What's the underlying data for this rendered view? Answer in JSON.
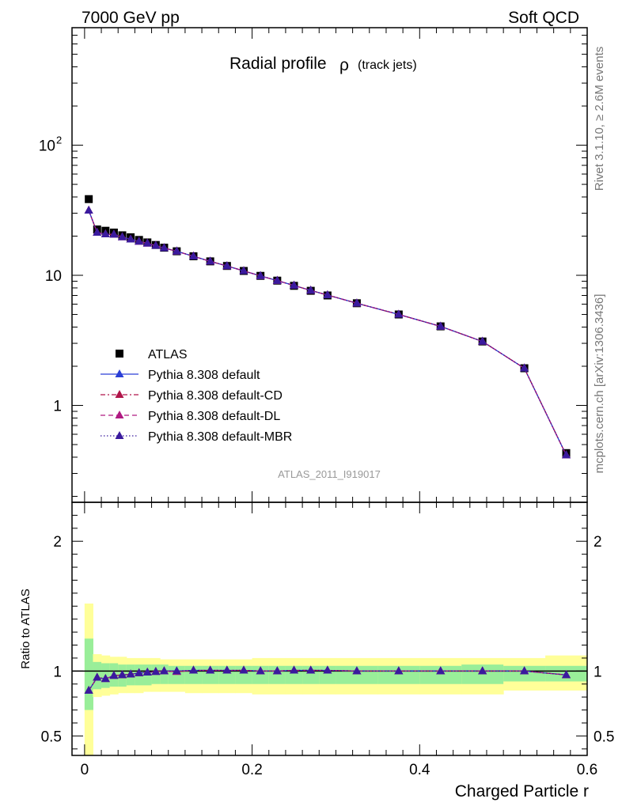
{
  "header": {
    "left": "7000 GeV pp",
    "right": "Soft QCD"
  },
  "side_labels": {
    "top": "Rivet 3.1.10, ≥ 2.6M events",
    "bottom": "mcplots.cern.ch [arXiv:1306.3436]"
  },
  "chart_data": [
    {
      "type": "scatter",
      "title": "Radial profile",
      "title_symbol": "ρ",
      "title_suffix": "(track jets)",
      "analysis_label": "ATLAS_2011_I919017",
      "xlabel": "",
      "ylabel": "",
      "xlim": [
        -0.015,
        0.6
      ],
      "ylog": true,
      "ylim": [
        0.18,
        800
      ],
      "ytick_labels": [
        "10^2",
        "10",
        "1"
      ],
      "legend_position": "lower-left",
      "x": [
        0.005,
        0.015,
        0.025,
        0.035,
        0.045,
        0.055,
        0.065,
        0.075,
        0.085,
        0.095,
        0.11,
        0.13,
        0.15,
        0.17,
        0.19,
        0.21,
        0.23,
        0.25,
        0.27,
        0.29,
        0.325,
        0.375,
        0.425,
        0.475,
        0.525,
        0.575
      ],
      "series": [
        {
          "name": "ATLAS",
          "color": "#000000",
          "marker": "square",
          "line": "none",
          "values": [
            38.5,
            22.5,
            22.0,
            21.3,
            20.3,
            19.6,
            18.7,
            17.9,
            17.1,
            16.3,
            15.3,
            14.0,
            12.8,
            11.8,
            10.8,
            9.9,
            9.1,
            8.3,
            7.6,
            7.0,
            6.1,
            5.0,
            4.05,
            3.1,
            1.93,
            0.43
          ]
        },
        {
          "name": "Pythia 8.308 default",
          "color": "#2a3fd6",
          "marker": "triangle",
          "line": "solid",
          "values": [
            31.5,
            21.3,
            20.7,
            20.6,
            19.7,
            18.9,
            18.2,
            17.6,
            16.9,
            16.2,
            15.3,
            14.0,
            12.8,
            11.8,
            10.8,
            9.9,
            9.1,
            8.35,
            7.65,
            7.05,
            6.1,
            5.0,
            4.05,
            3.1,
            1.93,
            0.415
          ]
        },
        {
          "name": "Pythia 8.308 default-CD",
          "color": "#b0154a",
          "marker": "triangle",
          "line": "dashdot",
          "values": [
            31.5,
            21.3,
            20.7,
            20.6,
            19.7,
            18.9,
            18.2,
            17.6,
            16.9,
            16.2,
            15.3,
            14.0,
            12.8,
            11.8,
            10.8,
            9.9,
            9.1,
            8.35,
            7.65,
            7.05,
            6.1,
            5.0,
            4.05,
            3.1,
            1.93,
            0.415
          ]
        },
        {
          "name": "Pythia 8.308 default-DL",
          "color": "#b01a82",
          "marker": "triangle",
          "line": "dashed",
          "values": [
            31.5,
            21.3,
            20.7,
            20.6,
            19.7,
            18.9,
            18.2,
            17.6,
            16.9,
            16.2,
            15.3,
            14.0,
            12.8,
            11.8,
            10.8,
            9.9,
            9.1,
            8.35,
            7.65,
            7.05,
            6.1,
            5.0,
            4.05,
            3.1,
            1.93,
            0.415
          ]
        },
        {
          "name": "Pythia 8.308 default-MBR",
          "color": "#3a1a9e",
          "marker": "triangle",
          "line": "dotted",
          "values": [
            31.5,
            21.3,
            20.7,
            20.6,
            19.7,
            18.9,
            18.2,
            17.6,
            16.9,
            16.2,
            15.3,
            14.0,
            12.8,
            11.8,
            10.8,
            9.9,
            9.1,
            8.35,
            7.65,
            7.05,
            6.1,
            5.0,
            4.05,
            3.1,
            1.93,
            0.415
          ]
        }
      ]
    },
    {
      "type": "scatter",
      "xlabel": "Charged Particle r",
      "ylabel": "Ratio to ATLAS",
      "xlim": [
        -0.015,
        0.6
      ],
      "ylim": [
        0.35,
        2.3
      ],
      "yticks": [
        0.5,
        1,
        2
      ],
      "ytick_labels": [
        "0.5",
        "1",
        "2"
      ],
      "xticks": [
        0,
        0.2,
        0.4,
        0.6
      ],
      "xtick_labels": [
        "0",
        "0.2",
        "0.4",
        "0.6"
      ],
      "reference_line": 1,
      "bins": [
        {
          "lo": 0.0,
          "hi": 0.01,
          "inner": [
            0.7,
            1.25
          ],
          "outer": [
            0.35,
            1.52
          ]
        },
        {
          "lo": 0.01,
          "hi": 0.02,
          "inner": [
            0.86,
            1.07
          ],
          "outer": [
            0.8,
            1.13
          ]
        },
        {
          "lo": 0.02,
          "hi": 0.03,
          "inner": [
            0.87,
            1.06
          ],
          "outer": [
            0.81,
            1.12
          ]
        },
        {
          "lo": 0.03,
          "hi": 0.04,
          "inner": [
            0.88,
            1.06
          ],
          "outer": [
            0.82,
            1.11
          ]
        },
        {
          "lo": 0.04,
          "hi": 0.05,
          "inner": [
            0.88,
            1.05
          ],
          "outer": [
            0.83,
            1.11
          ]
        },
        {
          "lo": 0.05,
          "hi": 0.06,
          "inner": [
            0.89,
            1.05
          ],
          "outer": [
            0.83,
            1.1
          ]
        },
        {
          "lo": 0.06,
          "hi": 0.07,
          "inner": [
            0.89,
            1.05
          ],
          "outer": [
            0.83,
            1.1
          ]
        },
        {
          "lo": 0.07,
          "hi": 0.08,
          "inner": [
            0.89,
            1.05
          ],
          "outer": [
            0.84,
            1.1
          ]
        },
        {
          "lo": 0.08,
          "hi": 0.09,
          "inner": [
            0.9,
            1.05
          ],
          "outer": [
            0.84,
            1.1
          ]
        },
        {
          "lo": 0.09,
          "hi": 0.1,
          "inner": [
            0.9,
            1.05
          ],
          "outer": [
            0.84,
            1.09
          ]
        },
        {
          "lo": 0.1,
          "hi": 0.12,
          "inner": [
            0.9,
            1.04
          ],
          "outer": [
            0.84,
            1.09
          ]
        },
        {
          "lo": 0.12,
          "hi": 0.14,
          "inner": [
            0.9,
            1.04
          ],
          "outer": [
            0.83,
            1.09
          ]
        },
        {
          "lo": 0.14,
          "hi": 0.16,
          "inner": [
            0.9,
            1.04
          ],
          "outer": [
            0.83,
            1.09
          ]
        },
        {
          "lo": 0.16,
          "hi": 0.18,
          "inner": [
            0.9,
            1.04
          ],
          "outer": [
            0.83,
            1.09
          ]
        },
        {
          "lo": 0.18,
          "hi": 0.2,
          "inner": [
            0.9,
            1.04
          ],
          "outer": [
            0.83,
            1.09
          ]
        },
        {
          "lo": 0.2,
          "hi": 0.22,
          "inner": [
            0.9,
            1.04
          ],
          "outer": [
            0.82,
            1.1
          ]
        },
        {
          "lo": 0.22,
          "hi": 0.24,
          "inner": [
            0.9,
            1.04
          ],
          "outer": [
            0.82,
            1.1
          ]
        },
        {
          "lo": 0.24,
          "hi": 0.26,
          "inner": [
            0.9,
            1.04
          ],
          "outer": [
            0.82,
            1.1
          ]
        },
        {
          "lo": 0.26,
          "hi": 0.28,
          "inner": [
            0.9,
            1.04
          ],
          "outer": [
            0.82,
            1.1
          ]
        },
        {
          "lo": 0.28,
          "hi": 0.3,
          "inner": [
            0.9,
            1.04
          ],
          "outer": [
            0.82,
            1.1
          ]
        },
        {
          "lo": 0.3,
          "hi": 0.35,
          "inner": [
            0.9,
            1.04
          ],
          "outer": [
            0.82,
            1.1
          ]
        },
        {
          "lo": 0.35,
          "hi": 0.4,
          "inner": [
            0.9,
            1.04
          ],
          "outer": [
            0.82,
            1.1
          ]
        },
        {
          "lo": 0.4,
          "hi": 0.45,
          "inner": [
            0.9,
            1.04
          ],
          "outer": [
            0.82,
            1.1
          ]
        },
        {
          "lo": 0.45,
          "hi": 0.5,
          "inner": [
            0.9,
            1.05
          ],
          "outer": [
            0.82,
            1.1
          ]
        },
        {
          "lo": 0.5,
          "hi": 0.55,
          "inner": [
            0.92,
            1.04
          ],
          "outer": [
            0.85,
            1.1
          ]
        },
        {
          "lo": 0.55,
          "hi": 0.6,
          "inner": [
            0.92,
            1.04
          ],
          "outer": [
            0.85,
            1.12
          ]
        }
      ],
      "x": [
        0.005,
        0.015,
        0.025,
        0.035,
        0.045,
        0.055,
        0.065,
        0.075,
        0.085,
        0.095,
        0.11,
        0.13,
        0.15,
        0.17,
        0.19,
        0.21,
        0.23,
        0.25,
        0.27,
        0.29,
        0.325,
        0.375,
        0.425,
        0.475,
        0.525,
        0.575
      ],
      "series": [
        {
          "name": "Pythia 8.308 default",
          "color": "#2a3fd6",
          "line": "solid",
          "values": [
            0.85,
            0.95,
            0.94,
            0.965,
            0.97,
            0.975,
            0.985,
            0.99,
            0.995,
            1.0,
            1.0,
            1.005,
            1.005,
            1.005,
            1.005,
            1.0,
            1.0,
            1.005,
            1.005,
            1.005,
            1.0,
            1.0,
            1.0,
            1.0,
            1.0,
            0.97
          ]
        },
        {
          "name": "Pythia 8.308 default-CD",
          "color": "#b0154a",
          "line": "dashdot",
          "values": [
            0.85,
            0.95,
            0.94,
            0.965,
            0.97,
            0.975,
            0.985,
            0.99,
            0.995,
            1.0,
            0.995,
            1.005,
            1.005,
            1.005,
            1.005,
            1.0,
            1.0,
            1.005,
            1.005,
            1.005,
            1.0,
            1.0,
            1.0,
            1.0,
            1.0,
            0.97
          ]
        },
        {
          "name": "Pythia 8.308 default-DL",
          "color": "#b01a82",
          "line": "dashed",
          "values": [
            0.85,
            0.95,
            0.94,
            0.965,
            0.97,
            0.975,
            0.985,
            0.99,
            0.995,
            1.0,
            0.995,
            1.005,
            1.005,
            1.005,
            1.005,
            1.0,
            1.0,
            1.005,
            1.005,
            1.005,
            1.0,
            1.0,
            1.0,
            1.0,
            1.0,
            0.97
          ]
        },
        {
          "name": "Pythia 8.308 default-MBR",
          "color": "#3a1a9e",
          "line": "dotted",
          "values": [
            0.85,
            0.95,
            0.94,
            0.965,
            0.97,
            0.975,
            0.985,
            0.99,
            0.995,
            1.0,
            1.0,
            1.005,
            1.005,
            1.005,
            1.005,
            1.0,
            1.0,
            1.005,
            1.005,
            1.005,
            1.0,
            1.0,
            1.0,
            1.0,
            1.0,
            0.97
          ]
        }
      ]
    }
  ]
}
